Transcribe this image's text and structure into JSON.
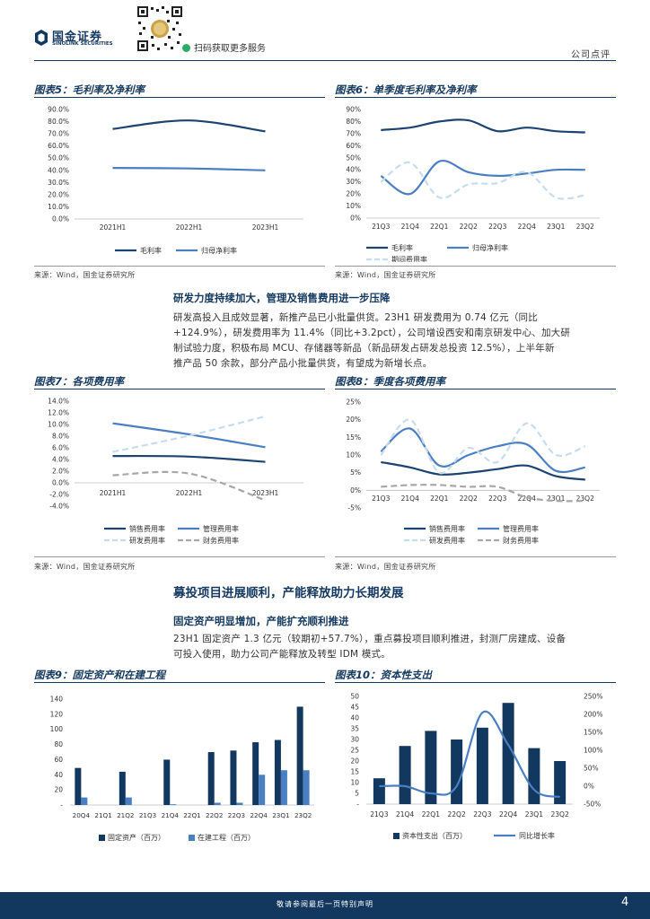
{
  "header": {
    "logo_cn": "国金证券",
    "logo_en": "SINOLINK SECURITIES",
    "qr_caption": "扫码获取更多服务",
    "report_type": "公司点评"
  },
  "fig5": {
    "title": "图表5：毛利率及净利率",
    "source": "来源：Wind，国金证券研究所",
    "chart_data": {
      "type": "line",
      "categories": [
        "2021H1",
        "2022H1",
        "2023H1"
      ],
      "ylim": [
        0,
        90
      ],
      "yticks": [
        "0.0%",
        "10.0%",
        "20.0%",
        "30.0%",
        "40.0%",
        "50.0%",
        "60.0%",
        "70.0%",
        "80.0%",
        "90.0%"
      ],
      "series": [
        {
          "name": "毛利率",
          "values": [
            74.0,
            81.0,
            72.0
          ],
          "color": "#1c4470"
        },
        {
          "name": "归母净利率",
          "values": [
            42.0,
            41.5,
            40.0
          ],
          "color": "#4a7fc1"
        }
      ],
      "legend": "bottom"
    }
  },
  "fig6": {
    "title": "图表6：单季度毛利率及净利率",
    "source": "来源：Wind，国金证券研究所",
    "chart_data": {
      "type": "line",
      "categories": [
        "21Q3",
        "21Q4",
        "22Q1",
        "22Q2",
        "22Q3",
        "22Q4",
        "23Q1",
        "23Q2"
      ],
      "ylim": [
        0,
        90
      ],
      "yticks": [
        "0%",
        "10%",
        "20%",
        "30%",
        "40%",
        "50%",
        "60%",
        "70%",
        "80%",
        "90%"
      ],
      "series": [
        {
          "name": "毛利率",
          "values": [
            73,
            75,
            80,
            81,
            72,
            75,
            72,
            71
          ],
          "color": "#1c4470"
        },
        {
          "name": "归母净利率",
          "values": [
            35,
            20,
            47,
            38,
            35,
            37,
            40,
            40
          ],
          "color": "#4a7fc1"
        },
        {
          "name": "期间费用率",
          "values": [
            30,
            46,
            17,
            28,
            29,
            38,
            17,
            19
          ],
          "color": "#c8dcef",
          "dashed": true
        }
      ],
      "legend": "bottom"
    }
  },
  "section1": {
    "heading": "研发力度持续加大，管理及销售费用进一步压降",
    "lines": [
      "研发高投入且成效显著，新推产品已小批量供货。23H1 研发费用为 0.74 亿元（同比",
      "+124.9%），研发费用率为 11.4%（同比+3.2pct），公司增设西安和南京研发中心、加大研",
      "制试验力度，积极布局 MCU、存储器等新品（新品研发占研发总投资 12.5%），上半年新",
      "推产品 50 余款，部分产品小批量供货，有望成为新增长点。"
    ]
  },
  "fig7": {
    "title": "图表7：各项费用率",
    "source": "来源：Wind，国金证券研究所",
    "chart_data": {
      "type": "line",
      "categories": [
        "2021H1",
        "2022H1",
        "2023H1"
      ],
      "ylim": [
        -4,
        14
      ],
      "yticks": [
        "-4.0%",
        "-2.0%",
        "0.0%",
        "2.0%",
        "4.0%",
        "6.0%",
        "8.0%",
        "10.0%",
        "12.0%",
        "14.0%"
      ],
      "series": [
        {
          "name": "销售费用率",
          "values": [
            4.6,
            4.5,
            3.6
          ],
          "color": "#1c4470"
        },
        {
          "name": "管理费用率",
          "values": [
            10.2,
            8.3,
            6.1
          ],
          "color": "#4a7fc1"
        },
        {
          "name": "研发费用率",
          "values": [
            5.3,
            8.1,
            11.4
          ],
          "color": "#c8dcef",
          "dashed": true
        },
        {
          "name": "财务费用率",
          "values": [
            1.3,
            1.6,
            -3.0
          ],
          "color": "#a7a7a7",
          "dashed": true
        }
      ],
      "legend": "bottom"
    }
  },
  "fig8": {
    "title": "图表8：季度各项费用率",
    "source": "来源：Wind，国金证券研究所",
    "chart_data": {
      "type": "line",
      "categories": [
        "21Q3",
        "21Q4",
        "22Q1",
        "22Q2",
        "22Q3",
        "22Q4",
        "23Q1",
        "23Q2"
      ],
      "ylim": [
        -5,
        25
      ],
      "yticks": [
        "-5%",
        "0%",
        "5%",
        "10%",
        "15%",
        "20%",
        "25%"
      ],
      "series": [
        {
          "name": "销售费用率",
          "values": [
            8,
            6.5,
            4.5,
            5,
            6,
            7,
            4,
            3
          ],
          "color": "#1c4470"
        },
        {
          "name": "管理费用率",
          "values": [
            11,
            17.5,
            7,
            10,
            12.5,
            13,
            5.5,
            6.5
          ],
          "color": "#4a7fc1"
        },
        {
          "name": "研发费用率",
          "values": [
            10,
            20,
            5,
            12,
            8,
            19,
            10,
            12.5
          ],
          "color": "#c8dcef",
          "dashed": true
        },
        {
          "name": "财务费用率",
          "values": [
            1,
            1.5,
            1.5,
            1,
            1,
            -2,
            -3,
            -3
          ],
          "color": "#a7a7a7",
          "dashed": true
        }
      ],
      "legend": "bottom"
    }
  },
  "section2": {
    "big_heading": "募投项目进展顺利，产能释放助力长期发展",
    "heading": "固定资产明显增加，产能扩充顺利推进",
    "lines": [
      "23H1 固定资产 1.3 亿元（较期初+57.7%），重点募投项目顺利推进，封测厂房建成、设备",
      "可投入使用，助力公司产能释放及转型 IDM 模式。"
    ]
  },
  "fig9": {
    "title": "图表9：固定资产和在建工程",
    "chart_data": {
      "type": "bar",
      "categories": [
        "20Q4",
        "21Q1",
        "21Q2",
        "21Q3",
        "21Q4",
        "22Q1",
        "22Q2",
        "22Q3",
        "22Q4",
        "23Q1",
        "23Q2"
      ],
      "ylim": [
        0,
        140
      ],
      "yticks": [
        "-",
        "20",
        "40",
        "60",
        "80",
        "100",
        "120",
        "140"
      ],
      "series": [
        {
          "name": "固定资产（百万）",
          "values": [
            49,
            null,
            44,
            null,
            60,
            null,
            70,
            72,
            83,
            86,
            130
          ],
          "color": "#13385f"
        },
        {
          "name": "在建工程（百万）",
          "values": [
            10,
            null,
            10,
            null,
            1,
            null,
            3,
            3,
            40,
            46,
            46
          ],
          "color": "#4a7fc1"
        }
      ],
      "legend": "bottom"
    }
  },
  "fig10": {
    "title": "图表10：资本性支出",
    "chart_data": {
      "type": "bar+line",
      "categories": [
        "21Q3",
        "21Q4",
        "22Q1",
        "22Q2",
        "22Q3",
        "22Q4",
        "23Q1",
        "23Q2"
      ],
      "ylim_left": [
        0,
        50
      ],
      "yticks_left": [
        "-",
        "5",
        "10",
        "15",
        "20",
        "25",
        "30",
        "35",
        "40",
        "45",
        "50"
      ],
      "ylim_right": [
        -50,
        250
      ],
      "yticks_right": [
        "-50%",
        "0%",
        "50%",
        "100%",
        "150%",
        "200%",
        "250%"
      ],
      "series": [
        {
          "name": "资本性支出（百万）",
          "type": "bar",
          "values": [
            12,
            27,
            34,
            30,
            35.5,
            47,
            26,
            20
          ],
          "color": "#13385f"
        },
        {
          "name": "同比增长率",
          "type": "line",
          "values": [
            0,
            0,
            -20,
            0,
            205,
            115,
            -10,
            -30
          ],
          "color": "#4a7fc1"
        }
      ],
      "legend": "bottom"
    }
  },
  "footer": {
    "disclaimer": "敬请参阅最后一页特别声明",
    "page": "4"
  }
}
